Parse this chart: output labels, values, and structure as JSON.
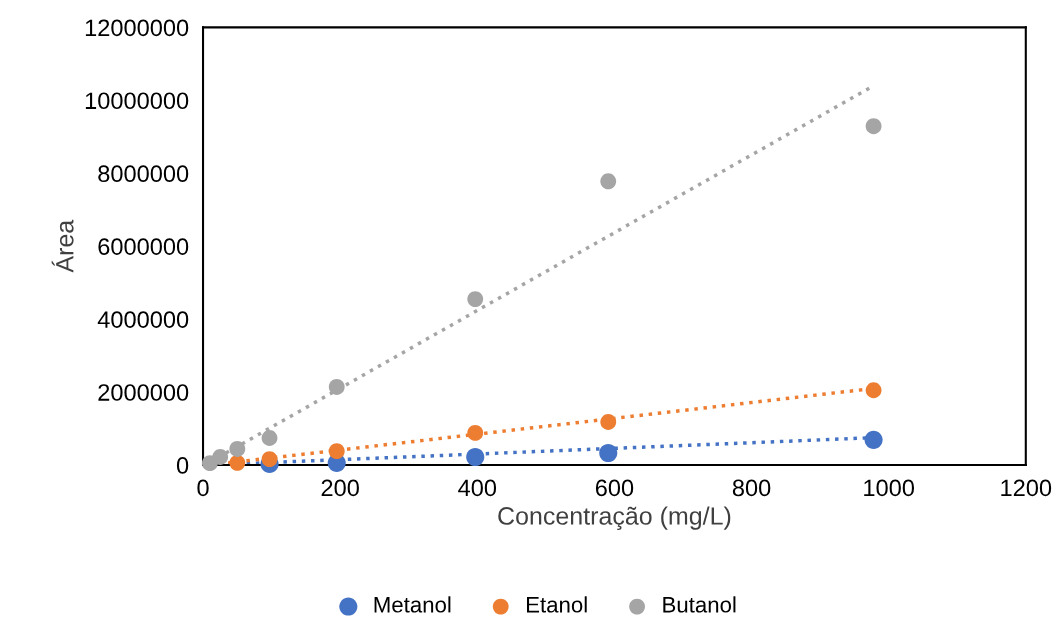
{
  "chart_data": {
    "type": "scatter",
    "xlabel": "Concentração (mg/L)",
    "ylabel": "Área",
    "xlim": [
      0,
      1200
    ],
    "xticks": [
      0,
      200,
      400,
      600,
      800,
      1000,
      1200
    ],
    "ylim": [
      0,
      12000000
    ],
    "yticks": [
      0,
      2000000,
      4000000,
      6000000,
      8000000,
      10000000,
      12000000
    ],
    "grid": false,
    "legend": "bottom",
    "marker": "circle",
    "series": [
      {
        "name": "Metanol",
        "color": "#4472c4",
        "x": [
          97,
          195,
          397,
          591,
          978
        ],
        "values": [
          30000,
          60000,
          220000,
          330000,
          690000
        ]
      },
      {
        "name": "Etanol",
        "color": "#ed7d31",
        "x": [
          50,
          97,
          195,
          397,
          591,
          978
        ],
        "values": [
          60000,
          160000,
          380000,
          880000,
          1180000,
          2050000
        ]
      },
      {
        "name": "Butanol",
        "color": "#a5a5a5",
        "x": [
          10,
          25,
          50,
          97,
          195,
          397,
          591,
          978
        ],
        "values": [
          50000,
          220000,
          440000,
          740000,
          2140000,
          4550000,
          7780000,
          9290000
        ]
      },
      {
        "type": "line",
        "line_style": "dotted",
        "marker": "none",
        "color": "#4472c4",
        "x": [
          10,
          978
        ],
        "values": [
          0,
          750000
        ]
      },
      {
        "type": "line",
        "line_style": "dotted",
        "marker": "none",
        "color": "#ed7d31",
        "x": [
          10,
          978
        ],
        "values": [
          0,
          2100000
        ]
      },
      {
        "type": "line",
        "line_style": "dotted",
        "marker": "none",
        "color": "#a5a5a5",
        "x": [
          10,
          978
        ],
        "values": [
          80000,
          10400000
        ]
      }
    ]
  }
}
